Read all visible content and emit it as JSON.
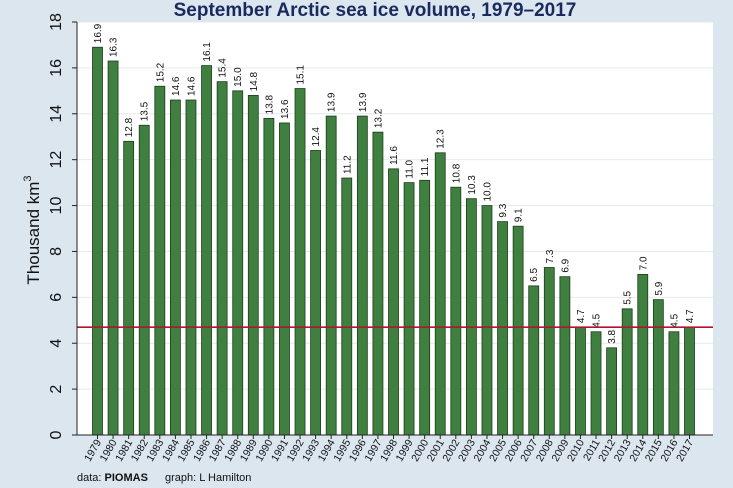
{
  "chart_data": {
    "type": "bar",
    "title": "September Arctic sea ice volume, 1979–2017",
    "ylabel": "Thousand km",
    "ylabel_superscript": "3",
    "ylim": [
      0,
      18
    ],
    "yticks": [
      0,
      2,
      4,
      6,
      8,
      10,
      12,
      14,
      16,
      18
    ],
    "grid": true,
    "reference_line": {
      "value": 4.7,
      "color": "#b0172e"
    },
    "bar_color": "#3f7f3f",
    "categories": [
      "1979",
      "1980",
      "1981",
      "1982",
      "1983",
      "1984",
      "1985",
      "1986",
      "1987",
      "1988",
      "1989",
      "1990",
      "1991",
      "1992",
      "1993",
      "1994",
      "1995",
      "1996",
      "1997",
      "1998",
      "1999",
      "2000",
      "2001",
      "2002",
      "2003",
      "2004",
      "2005",
      "2006",
      "2007",
      "2008",
      "2009",
      "2010",
      "2011",
      "2012",
      "2013",
      "2014",
      "2015",
      "2016",
      "2017"
    ],
    "values": [
      16.9,
      16.3,
      12.8,
      13.5,
      15.2,
      14.6,
      14.6,
      16.1,
      15.4,
      15.0,
      14.8,
      13.8,
      13.6,
      15.1,
      12.4,
      13.9,
      11.2,
      13.9,
      13.2,
      11.6,
      11.0,
      11.1,
      12.3,
      10.8,
      10.3,
      10.0,
      9.3,
      9.1,
      6.5,
      7.3,
      6.9,
      4.7,
      4.5,
      3.8,
      5.5,
      7.0,
      5.9,
      4.5,
      4.7
    ],
    "data_labels": [
      "16.9",
      "16.3",
      "12.8",
      "13.5",
      "15.2",
      "14.6",
      "14.6",
      "16.1",
      "15.4",
      "15.0",
      "14.8",
      "13.8",
      "13.6",
      "15.1",
      "12.4",
      "13.9",
      "11.2",
      "13.9",
      "13.2",
      "11.6",
      "11.0",
      "11.1",
      "12.3",
      "10.8",
      "10.3",
      "10.0",
      "9.3",
      "9.1",
      "6.5",
      "7.3",
      "6.9",
      "4.7",
      "4.5",
      "3.8",
      "5.5",
      "7.0",
      "5.9",
      "4.5",
      "4.7"
    ]
  },
  "footer": {
    "data_prefix": "data:",
    "data_source": "PIOMAS",
    "credit": "graph: L Hamilton"
  }
}
